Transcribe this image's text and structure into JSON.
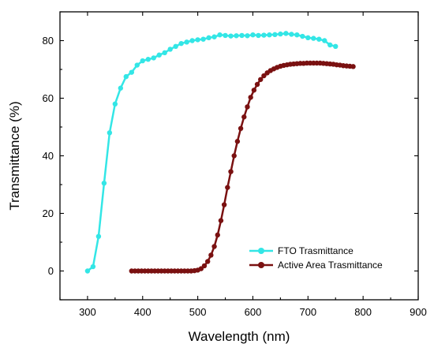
{
  "chart_data": {
    "type": "line",
    "xlabel": "Wavelength (nm)",
    "ylabel": "Transmittance (%)",
    "xlim": [
      250,
      900
    ],
    "ylim": [
      -10,
      90
    ],
    "xticks": [
      300,
      400,
      500,
      600,
      700,
      800,
      900
    ],
    "yticks": [
      0,
      20,
      40,
      60,
      80
    ],
    "grid": false,
    "legend_position": "lower-right",
    "series": [
      {
        "name": "FTO Trasmittance",
        "color": "#33e6e6",
        "marker": "circle",
        "x": [
          300,
          310,
          320,
          330,
          340,
          350,
          360,
          370,
          380,
          390,
          400,
          410,
          420,
          430,
          440,
          450,
          460,
          470,
          480,
          490,
          500,
          510,
          520,
          530,
          540,
          550,
          560,
          570,
          580,
          590,
          600,
          610,
          620,
          630,
          640,
          650,
          660,
          670,
          680,
          690,
          700,
          710,
          720,
          730,
          740,
          750
        ],
        "y": [
          0,
          1.5,
          12,
          30.5,
          48,
          58,
          63.5,
          67.5,
          69,
          71.5,
          73,
          73.5,
          74,
          75,
          75.8,
          77,
          78,
          79,
          79.5,
          80,
          80.3,
          80.5,
          81,
          81.3,
          82,
          81.8,
          81.6,
          81.7,
          81.8,
          81.7,
          82,
          81.8,
          81.9,
          82,
          82.1,
          82.3,
          82.5,
          82.2,
          82,
          81.5,
          81,
          80.8,
          80.5,
          80,
          78.5,
          78
        ]
      },
      {
        "name": "Active Area Trasmittance",
        "color": "#7a1111",
        "marker": "circle",
        "x": [
          380,
          386,
          392,
          398,
          404,
          410,
          416,
          422,
          428,
          434,
          440,
          446,
          452,
          458,
          464,
          470,
          476,
          482,
          488,
          494,
          500,
          506,
          512,
          518,
          524,
          530,
          536,
          542,
          548,
          554,
          560,
          566,
          572,
          578,
          584,
          590,
          596,
          602,
          608,
          614,
          620,
          626,
          632,
          638,
          644,
          650,
          656,
          662,
          668,
          674,
          680,
          686,
          692,
          698,
          704,
          710,
          716,
          722,
          728,
          734,
          740,
          746,
          752,
          758,
          764,
          770,
          776,
          782
        ],
        "y": [
          0,
          0,
          0,
          0,
          0,
          0,
          0,
          0,
          0,
          0,
          0,
          0,
          0,
          0,
          0,
          0,
          0,
          0,
          0,
          0.1,
          0.3,
          0.8,
          1.8,
          3.3,
          5.5,
          8.5,
          12.5,
          17.5,
          23,
          29,
          34.5,
          40,
          45,
          49.5,
          53.5,
          57,
          60.3,
          62.8,
          64.8,
          66.5,
          67.8,
          68.8,
          69.6,
          70.2,
          70.7,
          71.1,
          71.4,
          71.6,
          71.8,
          71.9,
          72,
          72.1,
          72.1,
          72.2,
          72.2,
          72.2,
          72.2,
          72.2,
          72.1,
          72,
          71.9,
          71.8,
          71.6,
          71.5,
          71.3,
          71.2,
          71.1,
          71
        ]
      }
    ]
  }
}
